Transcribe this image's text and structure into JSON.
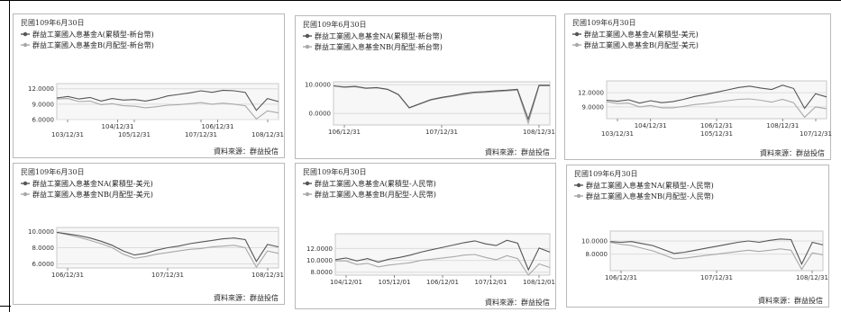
{
  "chart_data": [
    {
      "type": "line",
      "title": "民國109年6月30日",
      "series": [
        {
          "name": "群益工業國入息基金A(累積型-新台幣)",
          "color": "#555555",
          "values": [
            10.2,
            10.5,
            10.0,
            10.3,
            9.6,
            10.1,
            9.8,
            9.9,
            9.6,
            10.0,
            10.6,
            10.9,
            11.2,
            11.6,
            11.3,
            11.7,
            11.6,
            11.3,
            7.8,
            10.1,
            9.5
          ]
        },
        {
          "name": "群益工業國入息基金B(月配型-新台幣)",
          "color": "#a8a8a8",
          "values": [
            10.0,
            10.1,
            9.5,
            9.6,
            8.9,
            9.1,
            8.7,
            8.6,
            8.3,
            8.5,
            8.8,
            8.9,
            9.1,
            9.3,
            9.0,
            9.2,
            9.0,
            8.7,
            6.1,
            7.7,
            7.3
          ]
        }
      ],
      "ylim": [
        6,
        13
      ],
      "yticks": [
        "12.0000",
        "9.0000",
        "6.0000"
      ],
      "xticks_top": [
        "104/12/31",
        "106/12/31"
      ],
      "xticks_bottom": [
        "103/12/31",
        "105/12/31",
        "107/12/31",
        "108/12/31"
      ],
      "source": "資料來源：群益投信",
      "grid": true,
      "legend": "top-left"
    },
    {
      "type": "line",
      "title": "民國109年6月30日",
      "series": [
        {
          "name": "群益工業國入息基金NA(累積型-新台幣)",
          "color": "#555555",
          "values": [
            9.6,
            9.2,
            9.4,
            8.8,
            9.0,
            8.4,
            6.6,
            2.0,
            3.4,
            4.8,
            5.6,
            6.2,
            6.9,
            7.4,
            7.6,
            7.9,
            8.1,
            8.4,
            -2.0,
            9.8,
            9.8
          ]
        },
        {
          "name": "群益工業國入息基金NB(月配型-新台幣)",
          "color": "#a8a8a8",
          "values": [
            9.6,
            9.1,
            9.3,
            8.7,
            8.9,
            8.3,
            6.5,
            1.9,
            3.3,
            4.7,
            5.4,
            6.0,
            6.6,
            7.1,
            7.3,
            7.6,
            7.8,
            8.1,
            -3.4,
            9.6,
            9.6
          ]
        }
      ],
      "ylim": [
        -4,
        11
      ],
      "yticks": [
        "10.0000",
        "0.0000"
      ],
      "xticks_top": [],
      "xticks_bottom": [
        "106/12/31",
        "107/12/31",
        "108/12/31"
      ],
      "source": "資料來源：群益投信",
      "grid": true,
      "legend": "top-left"
    },
    {
      "type": "line",
      "title": "民國109年6月30日",
      "series": [
        {
          "name": "群益工業國入息基金A(累積型-美元)",
          "color": "#555555",
          "values": [
            10.4,
            10.2,
            10.5,
            9.8,
            10.3,
            9.9,
            10.1,
            10.6,
            11.2,
            11.6,
            12.1,
            12.6,
            13.1,
            13.4,
            13.0,
            12.7,
            13.6,
            12.9,
            8.7,
            11.8,
            11.1
          ]
        },
        {
          "name": "群益工業國入息基金B(月配型-美元)",
          "color": "#a8a8a8",
          "values": [
            10.1,
            9.7,
            9.8,
            9.0,
            9.3,
            8.8,
            8.8,
            9.1,
            9.5,
            9.7,
            10.0,
            10.3,
            10.6,
            10.7,
            10.4,
            10.0,
            10.6,
            9.9,
            6.8,
            9.0,
            8.6
          ]
        }
      ],
      "ylim": [
        6.5,
        14.5
      ],
      "yticks": [
        "12.0000",
        "9.0000"
      ],
      "xticks_top": [
        "104/12/31",
        "106/12/31",
        "108/12/31"
      ],
      "xticks_bottom": [
        "103/12/31",
        "105/12/31",
        "107/12/31"
      ],
      "source": "資料來源：群益投信",
      "grid": true,
      "legend": "top-left"
    },
    {
      "type": "line",
      "title": "民國109年6月30日",
      "series": [
        {
          "name": "群益工業國入息基金NA(累積型-美元)",
          "color": "#555555",
          "values": [
            9.9,
            9.7,
            9.5,
            9.2,
            8.8,
            8.3,
            7.6,
            7.1,
            7.3,
            7.7,
            8.0,
            8.2,
            8.5,
            8.7,
            8.9,
            9.1,
            9.2,
            9.0,
            6.3,
            8.4,
            8.1
          ]
        },
        {
          "name": "群益工業國入息基金NB(月配型-美元)",
          "color": "#a8a8a8",
          "values": [
            9.9,
            9.6,
            9.3,
            8.9,
            8.5,
            8.0,
            7.2,
            6.7,
            6.9,
            7.2,
            7.4,
            7.6,
            7.8,
            7.9,
            8.1,
            8.2,
            8.3,
            8.0,
            5.6,
            7.6,
            7.3
          ]
        }
      ],
      "ylim": [
        5.5,
        10.5
      ],
      "yticks": [
        "10.0000",
        "8.0000",
        "6.0000"
      ],
      "xticks_top": [],
      "xticks_bottom": [
        "106/12/31",
        "107/12/31",
        "108/12/31"
      ],
      "source": "資料來源：群益投信",
      "grid": true,
      "legend": "top-left"
    },
    {
      "type": "line",
      "title": "民國109年6月30日",
      "series": [
        {
          "name": "群益工業國入息基金A(累積型-人民幣)",
          "color": "#555555",
          "values": [
            10.1,
            10.4,
            9.9,
            10.3,
            9.7,
            10.2,
            10.5,
            10.9,
            11.4,
            11.8,
            12.2,
            12.6,
            13.0,
            13.3,
            12.8,
            12.5,
            13.4,
            12.9,
            8.4,
            12.1,
            11.4
          ]
        },
        {
          "name": "群益工業國入息基金B(月配型-人民幣)",
          "color": "#a8a8a8",
          "values": [
            9.9,
            9.9,
            9.3,
            9.5,
            8.9,
            9.2,
            9.4,
            9.6,
            10.0,
            10.2,
            10.4,
            10.6,
            10.9,
            11.0,
            10.5,
            10.1,
            10.8,
            10.3,
            6.7,
            9.4,
            8.8
          ]
        }
      ],
      "ylim": [
        7.5,
        14.5
      ],
      "yticks": [
        "12.0000",
        "10.0000",
        "8.0000"
      ],
      "xticks_top": [],
      "xticks_bottom": [
        "104/12/01",
        "105/12/01",
        "106/12/01",
        "107/12/01",
        "108/12/01"
      ],
      "source": "資料來源：群益投信",
      "grid": true,
      "legend": "top-left"
    },
    {
      "type": "line",
      "title": "民國109年6月30日",
      "series": [
        {
          "name": "群益工業國入息基金NA(累積型-人民幣)",
          "color": "#555555",
          "values": [
            9.9,
            9.8,
            9.9,
            9.6,
            9.3,
            8.7,
            8.1,
            8.3,
            8.6,
            8.9,
            9.2,
            9.5,
            9.8,
            10.0,
            9.8,
            10.1,
            10.3,
            10.2,
            6.5,
            9.8,
            9.4
          ]
        },
        {
          "name": "群益工業國入息基金NB(月配型-人民幣)",
          "color": "#a8a8a8",
          "values": [
            9.8,
            9.5,
            9.3,
            8.9,
            8.5,
            7.9,
            7.3,
            7.4,
            7.6,
            7.8,
            8.0,
            8.2,
            8.4,
            8.6,
            8.4,
            8.6,
            8.8,
            8.6,
            5.7,
            8.2,
            7.9
          ]
        }
      ],
      "ylim": [
        5.5,
        11.5
      ],
      "yticks": [
        "10.0000",
        "8.0000"
      ],
      "xticks_top": [],
      "xticks_bottom": [
        "106/12/31",
        "107/12/31",
        "108/12/31"
      ],
      "source": "資料來源：群益投信",
      "grid": true,
      "legend": "top-left"
    }
  ]
}
